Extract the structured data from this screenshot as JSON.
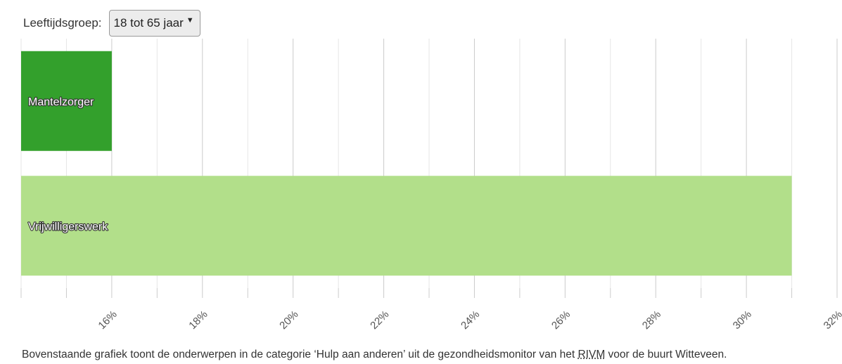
{
  "filter": {
    "label": "Leeftijdsgroep:",
    "selected": "18 tot 65 jaar"
  },
  "chart_data": {
    "type": "bar",
    "orientation": "horizontal",
    "categories": [
      "Mantelzorger",
      "Vrijwilligerswerk"
    ],
    "values": [
      16,
      31
    ],
    "colors": [
      "#33a02c",
      "#b2df8a"
    ],
    "xlim": [
      14,
      32
    ],
    "xticks": [
      16,
      18,
      20,
      22,
      24,
      26,
      28,
      30,
      32
    ],
    "xtick_labels": [
      "16%",
      "18%",
      "20%",
      "22%",
      "24%",
      "26%",
      "28%",
      "30%",
      "32%"
    ],
    "grid": true
  },
  "caption": {
    "before": "Bovenstaande grafiek toont de onderwerpen in de categorie ‘Hulp aan anderen’ uit de gezondheidsmonitor van het ",
    "abbr": "RIVM",
    "after": " voor de buurt Witteveen."
  }
}
